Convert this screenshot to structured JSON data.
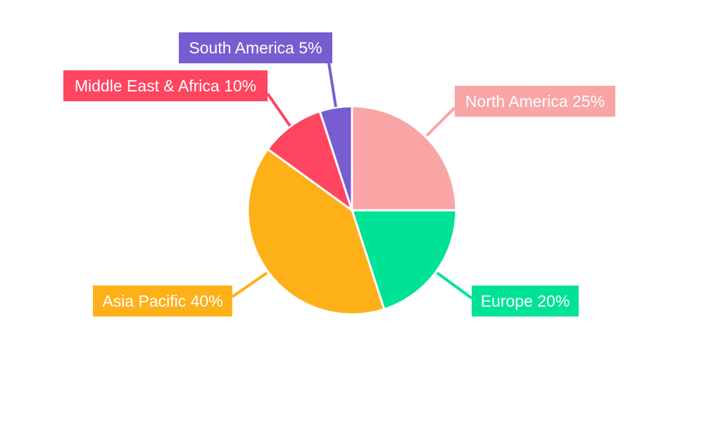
{
  "chart_data": {
    "type": "pie",
    "title": "",
    "start_angle": "top",
    "direction": "clockwise",
    "slices": [
      {
        "label": "North America",
        "value": 25,
        "display": "North America 25%",
        "color": "#F9A5A5"
      },
      {
        "label": "Europe",
        "value": 20,
        "display": "Europe 20%",
        "color": "#00E396"
      },
      {
        "label": "Asia Pacific",
        "value": 40,
        "display": "Asia Pacific 40%",
        "color": "#FEB019"
      },
      {
        "label": "Middle East & Africa",
        "value": 10,
        "display": "Middle East & Africa 10%",
        "color": "#FF4560"
      },
      {
        "label": "South America",
        "value": 5,
        "display": "South America 5%",
        "color": "#775DD0"
      }
    ]
  }
}
